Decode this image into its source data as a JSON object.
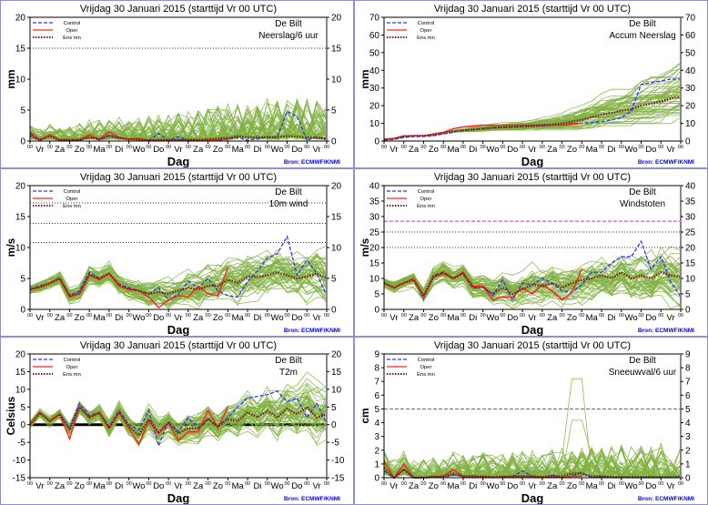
{
  "common": {
    "title": "Vrijdag   30 Januari   2015  (starttijd  Vr 00 UTC)",
    "location": "De Bilt",
    "xlabel": "Dag",
    "source": "Bron: ECMWF/KNMI",
    "hour_tick": "00",
    "days": [
      "Vr",
      "Za",
      "Zo",
      "Ma",
      "Di",
      "Wo",
      "Do",
      "Vr",
      "Za",
      "Zo",
      "Ma",
      "Di",
      "Wo",
      "Do",
      "Vr"
    ],
    "legend": [
      {
        "label": "Control",
        "color": "#3030ff",
        "style": "dashed"
      },
      {
        "label": "Oper",
        "color": "#ff2020",
        "style": "solid"
      },
      {
        "label": "Ens mn",
        "color": "#7a1a10",
        "style": "dotted"
      }
    ],
    "ensemble_color": "#7fb040",
    "time_step_days": 0.5
  },
  "chart_data": [
    {
      "type": "line",
      "name": "Neerslag/6 uur",
      "ylabel": "mm",
      "ylim": [
        0,
        20
      ],
      "yticks": [
        0,
        5,
        10,
        15,
        20
      ],
      "thresholds": [
        {
          "value": 15,
          "style": "dotted",
          "color": "#000000"
        }
      ],
      "kind": "precip",
      "spread": [
        1.2,
        4.5
      ],
      "control": [
        1.2,
        0.1,
        1.0,
        0.2,
        0.2,
        0.1,
        0.6,
        0.2,
        1.0,
        0.5,
        0.3,
        0.4,
        0.1,
        1.2,
        0.1,
        0.7,
        0.1,
        0.1,
        0.1,
        0.1,
        0.3,
        0.6,
        0.1,
        0.4,
        0.6,
        0.6,
        4.8,
        4.0,
        0.1,
        0.7,
        0.2
      ],
      "oper": [
        1.5,
        0.1,
        1.0,
        0.2,
        0.2,
        0.2,
        1.0,
        0.3,
        1.5,
        0.6,
        0.3,
        0.4,
        0.1,
        0.1,
        0.1,
        0.2,
        0.2,
        0.1,
        0.1,
        0.2,
        0.4
      ],
      "ens_mean": [
        0.8,
        0.2,
        0.8,
        0.2,
        0.2,
        0.2,
        0.6,
        0.3,
        0.8,
        0.5,
        0.3,
        0.3,
        0.1,
        0.2,
        0.2,
        0.2,
        0.2,
        0.2,
        0.3,
        0.4,
        0.5,
        0.8,
        0.6,
        0.6,
        0.6,
        0.6,
        0.8,
        0.7,
        0.6,
        0.5,
        0.4
      ]
    },
    {
      "type": "line",
      "name": "Accum Neerslag",
      "ylabel": "mm",
      "ylim": [
        0,
        70
      ],
      "yticks": [
        0,
        10,
        20,
        30,
        40,
        50,
        60,
        70
      ],
      "thresholds": [],
      "kind": "accum",
      "spread": [
        0.2,
        1.0
      ],
      "control": [
        0.5,
        1,
        2,
        2.5,
        2.5,
        3,
        4,
        5,
        6,
        6.5,
        7,
        7.5,
        7.5,
        8,
        8.5,
        8.5,
        8.5,
        9,
        9,
        10,
        10,
        10.5,
        11,
        12,
        13,
        17,
        32,
        33,
        34,
        35,
        35
      ],
      "oper": [
        1,
        1.5,
        3,
        3,
        3,
        4,
        5,
        7,
        8,
        8.5,
        9,
        9,
        9,
        9,
        9,
        9,
        9,
        9,
        9,
        9.5,
        10
      ],
      "ens_mean": [
        0.8,
        1.3,
        2.5,
        3,
        3,
        3.5,
        4.5,
        5.5,
        6,
        6.5,
        7,
        7.5,
        7.8,
        8,
        8.2,
        8.5,
        9,
        9.3,
        10,
        11,
        12,
        13.5,
        15,
        16,
        17,
        18,
        20,
        21,
        22.5,
        24,
        25
      ]
    },
    {
      "type": "line",
      "name": "10m wind",
      "ylabel": "m/s",
      "ylim": [
        0,
        20
      ],
      "yticks": [
        0,
        5,
        10,
        15,
        20
      ],
      "thresholds": [
        {
          "value": 10.8,
          "style": "dotted",
          "color": "#000000"
        },
        {
          "value": 13.9,
          "style": "dotted",
          "color": "#000000"
        },
        {
          "value": 17.2,
          "style": "dotted",
          "color": "#000000"
        }
      ],
      "kind": "normal",
      "spread": [
        0.6,
        4.5
      ],
      "control": [
        3.3,
        3.8,
        4.3,
        5.1,
        2.2,
        3,
        6,
        5,
        5.8,
        4,
        3.5,
        3,
        2.5,
        3.5,
        1.5,
        2.5,
        4.5,
        3.5,
        5,
        3,
        2.2,
        2,
        4.5,
        6.2,
        8.3,
        9,
        11.8,
        5.5,
        8,
        5.8,
        2.2
      ],
      "oper": [
        3.2,
        3.6,
        4.3,
        5,
        2,
        2.5,
        5.5,
        4.8,
        5.8,
        3.8,
        3.2,
        3,
        2,
        0.3,
        1.5,
        2.2,
        2,
        3.8,
        2.5,
        2.2,
        6.8
      ],
      "ens_mean": [
        3.2,
        3.6,
        4.2,
        5,
        2.2,
        2.6,
        5.6,
        5,
        5.8,
        4,
        3.3,
        3,
        2.5,
        2.8,
        2.5,
        3,
        3.5,
        3.2,
        3.8,
        3.8,
        4.8,
        4.3,
        5.3,
        5.2,
        5.5,
        6,
        5.5,
        5,
        5.3,
        5.8,
        5
      ]
    },
    {
      "type": "line",
      "name": "Windstoten",
      "ylabel": "m/s",
      "ylim": [
        0,
        40
      ],
      "yticks": [
        0,
        5,
        10,
        15,
        20,
        25,
        30,
        35,
        40
      ],
      "thresholds": [
        {
          "value": 20,
          "style": "dotted",
          "color": "#000000"
        },
        {
          "value": 25,
          "style": "dotted",
          "color": "#000000"
        },
        {
          "value": 28.5,
          "style": "dashed",
          "color": "#ff00ff"
        }
      ],
      "kind": "normal",
      "spread": [
        1.2,
        9
      ],
      "control": [
        8.5,
        7,
        8.5,
        10,
        3.5,
        11,
        12,
        10,
        11.5,
        7,
        7.5,
        4.5,
        9.5,
        3,
        8.5,
        8,
        10,
        8.5,
        6,
        5.5,
        8,
        12,
        12,
        15,
        17,
        17,
        22,
        13,
        17,
        9,
        4
      ],
      "oper": [
        8.5,
        7,
        8.5,
        10,
        4,
        10.5,
        11.5,
        10,
        12,
        7.5,
        7.5,
        3,
        4,
        4,
        7,
        5,
        8,
        6,
        3,
        5.5,
        13
      ],
      "ens_mean": [
        8.5,
        7,
        8.5,
        9.5,
        4.5,
        10.5,
        12,
        10,
        11.5,
        7,
        7,
        5,
        7,
        5,
        6.5,
        8,
        7.5,
        8.5,
        7,
        8.5,
        9.5,
        10,
        11,
        10,
        12,
        10,
        11,
        10,
        12,
        11,
        10.5
      ]
    },
    {
      "type": "line",
      "name": "T2m",
      "ylabel": "Celsius",
      "ylim": [
        -15,
        20
      ],
      "yticks": [
        -15,
        -10,
        -5,
        0,
        5,
        10,
        15,
        20
      ],
      "thresholds": [
        {
          "value": 0,
          "style": "thick",
          "color": "#000000"
        }
      ],
      "kind": "normal",
      "spread": [
        0.8,
        7
      ],
      "control": [
        0,
        3.5,
        1,
        3,
        -1,
        6,
        2.5,
        3.5,
        -0.5,
        4,
        0,
        -1.5,
        4,
        -6,
        1,
        -2,
        2,
        -1,
        1.8,
        -0.5,
        2,
        5,
        7.5,
        8,
        8.5,
        9.5,
        6.5,
        7.5,
        2,
        6,
        0.5
      ],
      "oper": [
        0,
        3.5,
        1,
        3,
        -4,
        5,
        2,
        3.5,
        -1,
        3.5,
        -1,
        -5.5,
        1,
        -2.5,
        0.5,
        -4.5,
        -2,
        -2,
        4,
        -1,
        5
      ],
      "ens_mean": [
        0,
        3.3,
        1,
        3,
        -1.5,
        5,
        2,
        3.3,
        -1,
        3.5,
        -0.5,
        -3,
        1.5,
        -2,
        0.5,
        -2.5,
        -1,
        -1,
        1.5,
        -0.5,
        1.5,
        1,
        3.5,
        2,
        4,
        2,
        4.5,
        3,
        5,
        2,
        3
      ]
    },
    {
      "type": "line",
      "name": "Sneeuwval/6 uur",
      "ylabel": "cm",
      "ylim": [
        0,
        9
      ],
      "yticks": [
        0,
        1,
        2,
        3,
        4,
        5,
        6,
        7,
        8,
        9
      ],
      "thresholds": [
        {
          "value": 5,
          "style": "dashed",
          "color": "#ff00ff"
        }
      ],
      "kind": "precip",
      "spread": [
        0.8,
        1.6
      ],
      "peak": {
        "day": 9.75,
        "value": 7.2
      },
      "control": [
        0.5,
        0,
        0.6,
        0,
        0,
        0.1,
        0,
        0.2,
        0.1,
        0.1,
        0.1,
        0,
        0.1,
        0.1,
        0.5,
        0.1,
        0,
        0.2,
        0,
        0.1,
        0.4,
        0,
        0.1,
        0,
        0,
        0,
        0,
        0,
        0,
        0,
        0
      ],
      "oper": [
        1.2,
        0,
        1,
        0,
        0,
        0.1,
        0.1,
        0.6,
        0.1,
        0.1,
        0.1,
        0,
        0.1,
        0.1,
        0.1,
        0.1,
        0,
        0.1,
        0,
        0.1,
        0.1
      ],
      "ens_mean": [
        0.7,
        0,
        0.6,
        0,
        0,
        0.05,
        0.1,
        0.3,
        0.1,
        0.1,
        0.1,
        0.05,
        0.05,
        0.1,
        0.1,
        0.1,
        0.05,
        0.1,
        0.1,
        0.3,
        0.3,
        0.1,
        0.1,
        0.05,
        0.05,
        0.05,
        0.05,
        0.05,
        0.05,
        0.05,
        0.05
      ]
    }
  ]
}
